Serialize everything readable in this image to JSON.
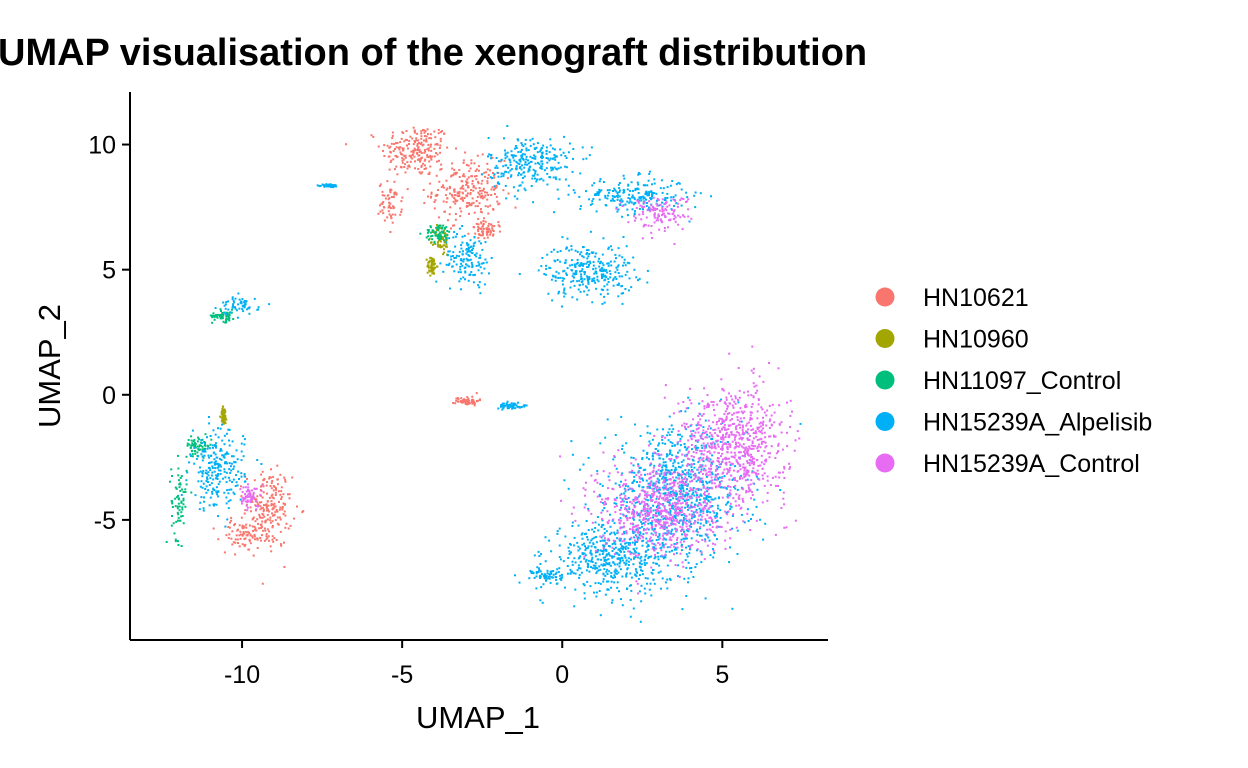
{
  "chart_data": {
    "type": "scatter",
    "title": "UMAP visualisation of the xenograft distribution",
    "xlabel": "UMAP_1",
    "ylabel": "UMAP_2",
    "xlim": [
      -13.5,
      8.3
    ],
    "ylim": [
      -9.8,
      12.1
    ],
    "xticks": [
      -10,
      -5,
      0,
      5
    ],
    "xtick_labels": [
      "-10",
      "-5",
      "0",
      "5"
    ],
    "yticks": [
      -5,
      0,
      5,
      10
    ],
    "ytick_labels": [
      "-5",
      "0",
      "5",
      "10"
    ],
    "grid": false,
    "legend_position": "right",
    "legend": [
      {
        "name": "HN10621",
        "color": "#F8766D"
      },
      {
        "name": "HN10960",
        "color": "#A3A500"
      },
      {
        "name": "HN11097_Control",
        "color": "#00BF7D"
      },
      {
        "name": "HN15239A_Alpelisib",
        "color": "#00B0F6"
      },
      {
        "name": "HN15239A_Control",
        "color": "#E76BF3"
      }
    ],
    "series": [
      {
        "name": "HN10621",
        "clusters": [
          {
            "cx": -4.6,
            "cy": 9.8,
            "sx": 0.9,
            "sy": 0.9
          },
          {
            "cx": -3.0,
            "cy": 8.2,
            "sx": 0.9,
            "sy": 1.0
          },
          {
            "cx": -2.4,
            "cy": 6.6,
            "sx": 0.4,
            "sy": 0.3
          },
          {
            "cx": -5.4,
            "cy": 7.7,
            "sx": 0.3,
            "sy": 0.7
          },
          {
            "cx": -9.2,
            "cy": -4.5,
            "sx": 0.6,
            "sy": 1.3
          },
          {
            "cx": -10.0,
            "cy": -5.6,
            "sx": 0.6,
            "sy": 0.5
          },
          {
            "cx": -3.0,
            "cy": -0.2,
            "sx": 0.3,
            "sy": 0.15
          }
        ]
      },
      {
        "name": "HN10960",
        "clusters": [
          {
            "cx": -4.1,
            "cy": 5.2,
            "sx": 0.12,
            "sy": 0.3
          },
          {
            "cx": -3.8,
            "cy": 6.2,
            "sx": 0.2,
            "sy": 0.5
          },
          {
            "cx": -10.6,
            "cy": -0.8,
            "sx": 0.08,
            "sy": 0.3
          }
        ]
      },
      {
        "name": "HN11097_Control",
        "clusters": [
          {
            "cx": -3.9,
            "cy": 6.5,
            "sx": 0.35,
            "sy": 0.3
          },
          {
            "cx": -10.6,
            "cy": 3.2,
            "sx": 0.3,
            "sy": 0.2
          },
          {
            "cx": -12.0,
            "cy": -4.2,
            "sx": 0.2,
            "sy": 1.3
          },
          {
            "cx": -11.4,
            "cy": -2.0,
            "sx": 0.35,
            "sy": 0.3
          }
        ]
      },
      {
        "name": "HN15239A_Alpelisib",
        "clusters": [
          {
            "cx": 2.2,
            "cy": 8.0,
            "sx": 1.4,
            "sy": 0.6
          },
          {
            "cx": 0.8,
            "cy": 5.0,
            "sx": 1.2,
            "sy": 0.9
          },
          {
            "cx": -1.0,
            "cy": 9.3,
            "sx": 1.1,
            "sy": 0.9
          },
          {
            "cx": -3.0,
            "cy": 5.5,
            "sx": 0.6,
            "sy": 0.9
          },
          {
            "cx": 3.5,
            "cy": -4.0,
            "sx": 1.8,
            "sy": 2.2
          },
          {
            "cx": 1.5,
            "cy": -6.5,
            "sx": 1.5,
            "sy": 1.2
          },
          {
            "cx": -0.5,
            "cy": -7.2,
            "sx": 0.4,
            "sy": 0.3
          },
          {
            "cx": -10.1,
            "cy": 3.6,
            "sx": 0.5,
            "sy": 0.3
          },
          {
            "cx": -10.8,
            "cy": -3.0,
            "sx": 0.7,
            "sy": 1.3
          },
          {
            "cx": -1.6,
            "cy": -0.4,
            "sx": 0.4,
            "sy": 0.1
          },
          {
            "cx": -7.3,
            "cy": 8.4,
            "sx": 0.2,
            "sy": 0.05
          }
        ]
      },
      {
        "name": "HN15239A_Control",
        "clusters": [
          {
            "cx": 5.3,
            "cy": -2.0,
            "sx": 1.4,
            "sy": 2.0
          },
          {
            "cx": 3.0,
            "cy": -4.5,
            "sx": 1.6,
            "sy": 1.6
          },
          {
            "cx": 3.0,
            "cy": 7.3,
            "sx": 0.8,
            "sy": 0.6
          },
          {
            "cx": -9.8,
            "cy": -4.0,
            "sx": 0.3,
            "sy": 0.4
          }
        ]
      }
    ]
  }
}
